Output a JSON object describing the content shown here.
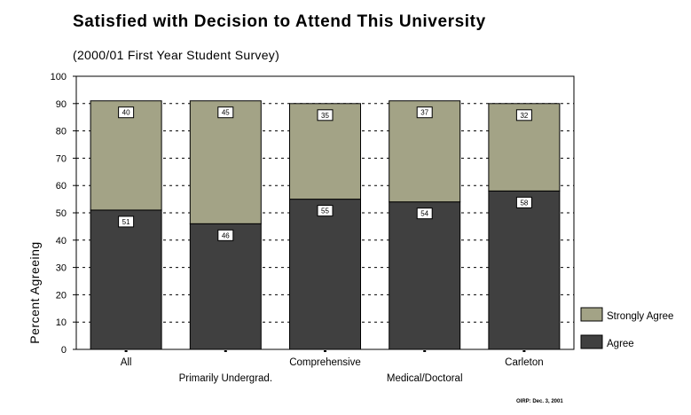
{
  "chart_data": {
    "type": "bar",
    "stacked": true,
    "title": "Satisfied with Decision to Attend This University",
    "subtitle": "(2000/01 First Year Student Survey)",
    "xlabel": "",
    "ylabel": "Percent Agreeing",
    "ylim": [
      0,
      100
    ],
    "yticks": [
      "0",
      "10",
      "20",
      "30",
      "40",
      "50",
      "60",
      "70",
      "80",
      "90",
      "100"
    ],
    "grid": true,
    "legend_position": "right",
    "categories": [
      "All",
      "Primarily Undergrad.",
      "Comprehensive",
      "Medical/Doctoral",
      "Carleton"
    ],
    "series": [
      {
        "name": "Agree",
        "color": "#404040",
        "values": [
          51,
          46,
          55,
          54,
          58
        ]
      },
      {
        "name": "Strongly Agree",
        "color": "#a3a386",
        "values": [
          40,
          45,
          35,
          37,
          32
        ]
      }
    ],
    "data_labels": true
  },
  "footer": {
    "source_note": "OIRP: Dec. 3, 2001"
  }
}
